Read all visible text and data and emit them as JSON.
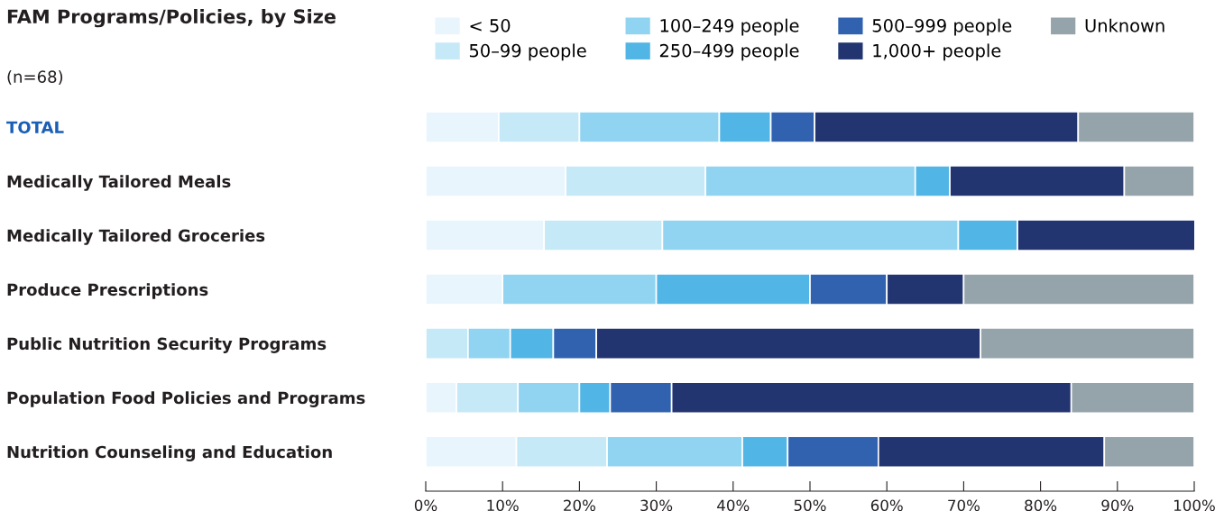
{
  "chart_data": {
    "type": "bar",
    "orientation": "horizontal",
    "stacked": true,
    "title": "FAM Programs/Policies, by Size",
    "subtitle": "(n=68)",
    "categories": [
      "TOTAL",
      "Medically Tailored Meals",
      "Medically Tailored Groceries",
      "Produce Prescriptions",
      "Public Nutrition Security Programs",
      "Population Food Policies and Programs",
      "Nutrition Counseling and Education"
    ],
    "series": [
      {
        "name": "< 50",
        "color": "#e8f5fc",
        "values": [
          9.5,
          18.2,
          15.4,
          10,
          0,
          4,
          11.8
        ]
      },
      {
        "name": "50–99 people",
        "color": "#c6e9f8",
        "values": [
          10.5,
          18.2,
          15.4,
          0,
          5.5,
          8,
          11.8
        ]
      },
      {
        "name": "100–249 people",
        "color": "#90d4f2",
        "values": [
          18.2,
          27.3,
          38.5,
          20,
          5.5,
          8,
          17.6
        ]
      },
      {
        "name": "250–499 people",
        "color": "#51b5e6",
        "values": [
          6.7,
          4.5,
          7.7,
          20,
          5.6,
          4,
          5.9
        ]
      },
      {
        "name": "500–999 people",
        "color": "#3162b0",
        "values": [
          5.7,
          0,
          0,
          10,
          5.6,
          8,
          11.8
        ]
      },
      {
        "name": "1,000+ people",
        "color": "#223571",
        "values": [
          34.3,
          22.7,
          23.1,
          10,
          50,
          52,
          29.4
        ]
      },
      {
        "name": "Unknown",
        "color": "#95a3aa",
        "values": [
          15.1,
          9.1,
          0,
          30,
          27.8,
          16,
          11.7
        ]
      }
    ],
    "xlim": [
      0,
      100
    ],
    "xticks": [
      {
        "value": 0,
        "label": "0%"
      },
      {
        "value": 10,
        "label": "10%"
      },
      {
        "value": 20,
        "label": "20%"
      },
      {
        "value": 30,
        "label": "30%"
      },
      {
        "value": 40,
        "label": "40%"
      },
      {
        "value": 50,
        "label": "50%"
      },
      {
        "value": 60,
        "label": "60%"
      },
      {
        "value": 70,
        "label": "70%"
      },
      {
        "value": 80,
        "label": "80%"
      },
      {
        "value": 90,
        "label": "90%"
      },
      {
        "value": 100,
        "label": "100%"
      }
    ],
    "grid": false,
    "legend": "top"
  }
}
